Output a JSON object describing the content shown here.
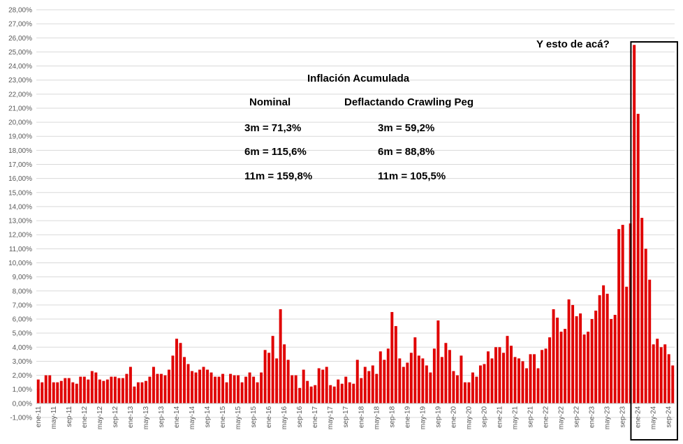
{
  "chart_data": {
    "type": "bar",
    "color": "#e00000",
    "grid": true,
    "ylim": [
      -1,
      28
    ],
    "yticks": [
      "-1,00%",
      "0,00%",
      "1,00%",
      "2,00%",
      "3,00%",
      "4,00%",
      "5,00%",
      "6,00%",
      "7,00%",
      "8,00%",
      "9,00%",
      "10,00%",
      "11,00%",
      "12,00%",
      "13,00%",
      "14,00%",
      "15,00%",
      "16,00%",
      "17,00%",
      "18,00%",
      "19,00%",
      "20,00%",
      "21,00%",
      "22,00%",
      "23,00%",
      "24,00%",
      "25,00%",
      "26,00%",
      "27,00%",
      "28,00%"
    ],
    "xticks": [
      "ene-11",
      "may-11",
      "sep-11",
      "ene-12",
      "may-12",
      "sep-12",
      "ene-13",
      "may-13",
      "sep-13",
      "ene-14",
      "may-14",
      "sep-14",
      "ene-15",
      "may-15",
      "sep-15",
      "ene-16",
      "may-16",
      "sep-16",
      "ene-17",
      "may-17",
      "sep-17",
      "ene-18",
      "may-18",
      "sep-18",
      "ene-19",
      "may-19",
      "sep-19",
      "ene-20",
      "may-20",
      "sep-20",
      "ene-21",
      "may-21",
      "sep-21",
      "ene-22",
      "may-22",
      "sep-22",
      "ene-23",
      "may-23",
      "sep-23",
      "ene-24",
      "may-24",
      "sep-24"
    ],
    "start_month": "ene-11",
    "values": [
      1.7,
      1.5,
      2.0,
      2.0,
      1.5,
      1.5,
      1.6,
      1.8,
      1.8,
      1.5,
      1.4,
      1.9,
      1.9,
      1.7,
      2.3,
      2.2,
      1.7,
      1.6,
      1.7,
      1.9,
      1.9,
      1.8,
      1.8,
      2.1,
      2.6,
      1.2,
      1.5,
      1.5,
      1.6,
      1.9,
      2.6,
      2.1,
      2.1,
      2.0,
      2.4,
      3.4,
      4.6,
      4.3,
      3.3,
      2.8,
      2.3,
      2.2,
      2.4,
      2.6,
      2.4,
      2.2,
      1.9,
      1.9,
      2.1,
      1.5,
      2.1,
      2.0,
      2.0,
      1.5,
      1.9,
      2.2,
      1.9,
      1.5,
      2.2,
      3.8,
      3.6,
      4.8,
      3.2,
      6.7,
      4.2,
      3.1,
      2.0,
      2.0,
      1.1,
      2.4,
      1.6,
      1.2,
      1.3,
      2.5,
      2.4,
      2.6,
      1.3,
      1.2,
      1.7,
      1.4,
      1.9,
      1.5,
      1.4,
      3.1,
      1.8,
      2.6,
      2.3,
      2.7,
      2.1,
      3.7,
      3.1,
      3.9,
      6.5,
      5.5,
      3.2,
      2.6,
      2.9,
      3.6,
      4.7,
      3.4,
      3.2,
      2.7,
      2.2,
      3.9,
      5.9,
      3.3,
      4.3,
      3.8,
      2.3,
      2.0,
      3.4,
      1.5,
      1.5,
      2.2,
      1.9,
      2.7,
      2.8,
      3.7,
      3.2,
      4.0,
      4.0,
      3.6,
      4.8,
      4.1,
      3.3,
      3.2,
      3.0,
      2.5,
      3.5,
      3.5,
      2.5,
      3.8,
      3.9,
      4.7,
      6.7,
      6.1,
      5.1,
      5.3,
      7.4,
      7.0,
      6.2,
      6.4,
      4.9,
      5.1,
      6.0,
      6.6,
      7.7,
      8.4,
      7.8,
      6.0,
      6.3,
      12.4,
      12.7,
      8.3,
      12.8,
      25.5,
      20.6,
      13.2,
      11.0,
      8.8,
      4.2,
      4.6,
      4.0,
      4.2,
      3.5,
      2.7
    ],
    "annotations": {
      "question": "Y esto de acá?",
      "title": "Inflación Acumulada",
      "col1_header": "Nominal",
      "col2_header": "Deflactando Crawling Peg",
      "col1_rows": [
        "3m = 71,3%",
        "6m = 115,6%",
        "11m = 159,8%"
      ],
      "col2_rows": [
        "3m = 59,2%",
        "6m = 88,8%",
        "11m = 105,5%"
      ]
    },
    "highlight_box": {
      "from_index": 155,
      "to_index": 165
    }
  }
}
